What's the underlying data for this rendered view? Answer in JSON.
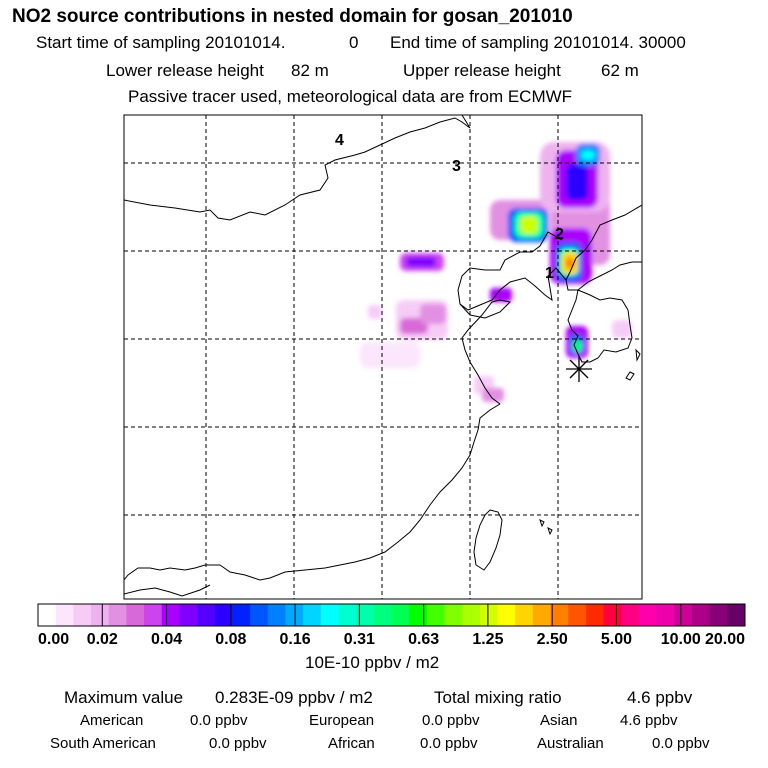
{
  "header": {
    "title": "NO2 source contributions in nested domain for gosan_201010",
    "start_label": "Start time of sampling 20101014.",
    "start_value": "0",
    "end_label": "End time of sampling 20101014. 30000",
    "lower_label": "Lower release height",
    "lower_value": "82 m",
    "upper_label": "Upper release height",
    "upper_value": "62 m",
    "tracer_note": "Passive tracer used, meteorological data are from ECMWF"
  },
  "map": {
    "region_labels": [
      "1",
      "2",
      "3",
      "4"
    ],
    "receptor_marker": "receptor-asterisk"
  },
  "legend": {
    "ticks": [
      "0.00",
      "0.02",
      "0.04",
      "0.08",
      "0.16",
      "0.31",
      "0.63",
      "1.25",
      "2.50",
      "5.00",
      "10.00",
      "20.00"
    ],
    "colors": [
      "#ffffff",
      "#fbe6fb",
      "#f6ccf6",
      "#eeb2ee",
      "#e290e2",
      "#d869d8",
      "#cc44ee",
      "#aa00ff",
      "#7f00ff",
      "#5500ff",
      "#2a00ff",
      "#0022ff",
      "#0055ff",
      "#0080ff",
      "#00aaff",
      "#00d4ff",
      "#00ffff",
      "#00ffd0",
      "#00ffaa",
      "#00ff80",
      "#00ff55",
      "#00ff00",
      "#44ff00",
      "#80ff00",
      "#aaff00",
      "#d4ff00",
      "#ffff00",
      "#ffd500",
      "#ffaa00",
      "#ff8000",
      "#ff5500",
      "#ff2a00",
      "#ff0040",
      "#ff0080",
      "#ff00aa",
      "#ee00aa",
      "#cc0099",
      "#aa0088",
      "#880077",
      "#660066"
    ],
    "unit": "10E-10 ppbv / m2"
  },
  "summary": {
    "max_label": "Maximum value",
    "max_value": "0.283E-09 ppbv / m2",
    "total_label": "Total mixing ratio",
    "total_value": "4.6 ppbv",
    "regions": [
      {
        "name": "American",
        "value": "0.0 ppbv"
      },
      {
        "name": "European",
        "value": "0.0 ppbv"
      },
      {
        "name": "Asian",
        "value": "4.6 ppbv"
      },
      {
        "name": "South American",
        "value": "0.0 ppbv"
      },
      {
        "name": "African",
        "value": "0.0 ppbv"
      },
      {
        "name": "Australian",
        "value": "0.0 ppbv"
      }
    ]
  }
}
